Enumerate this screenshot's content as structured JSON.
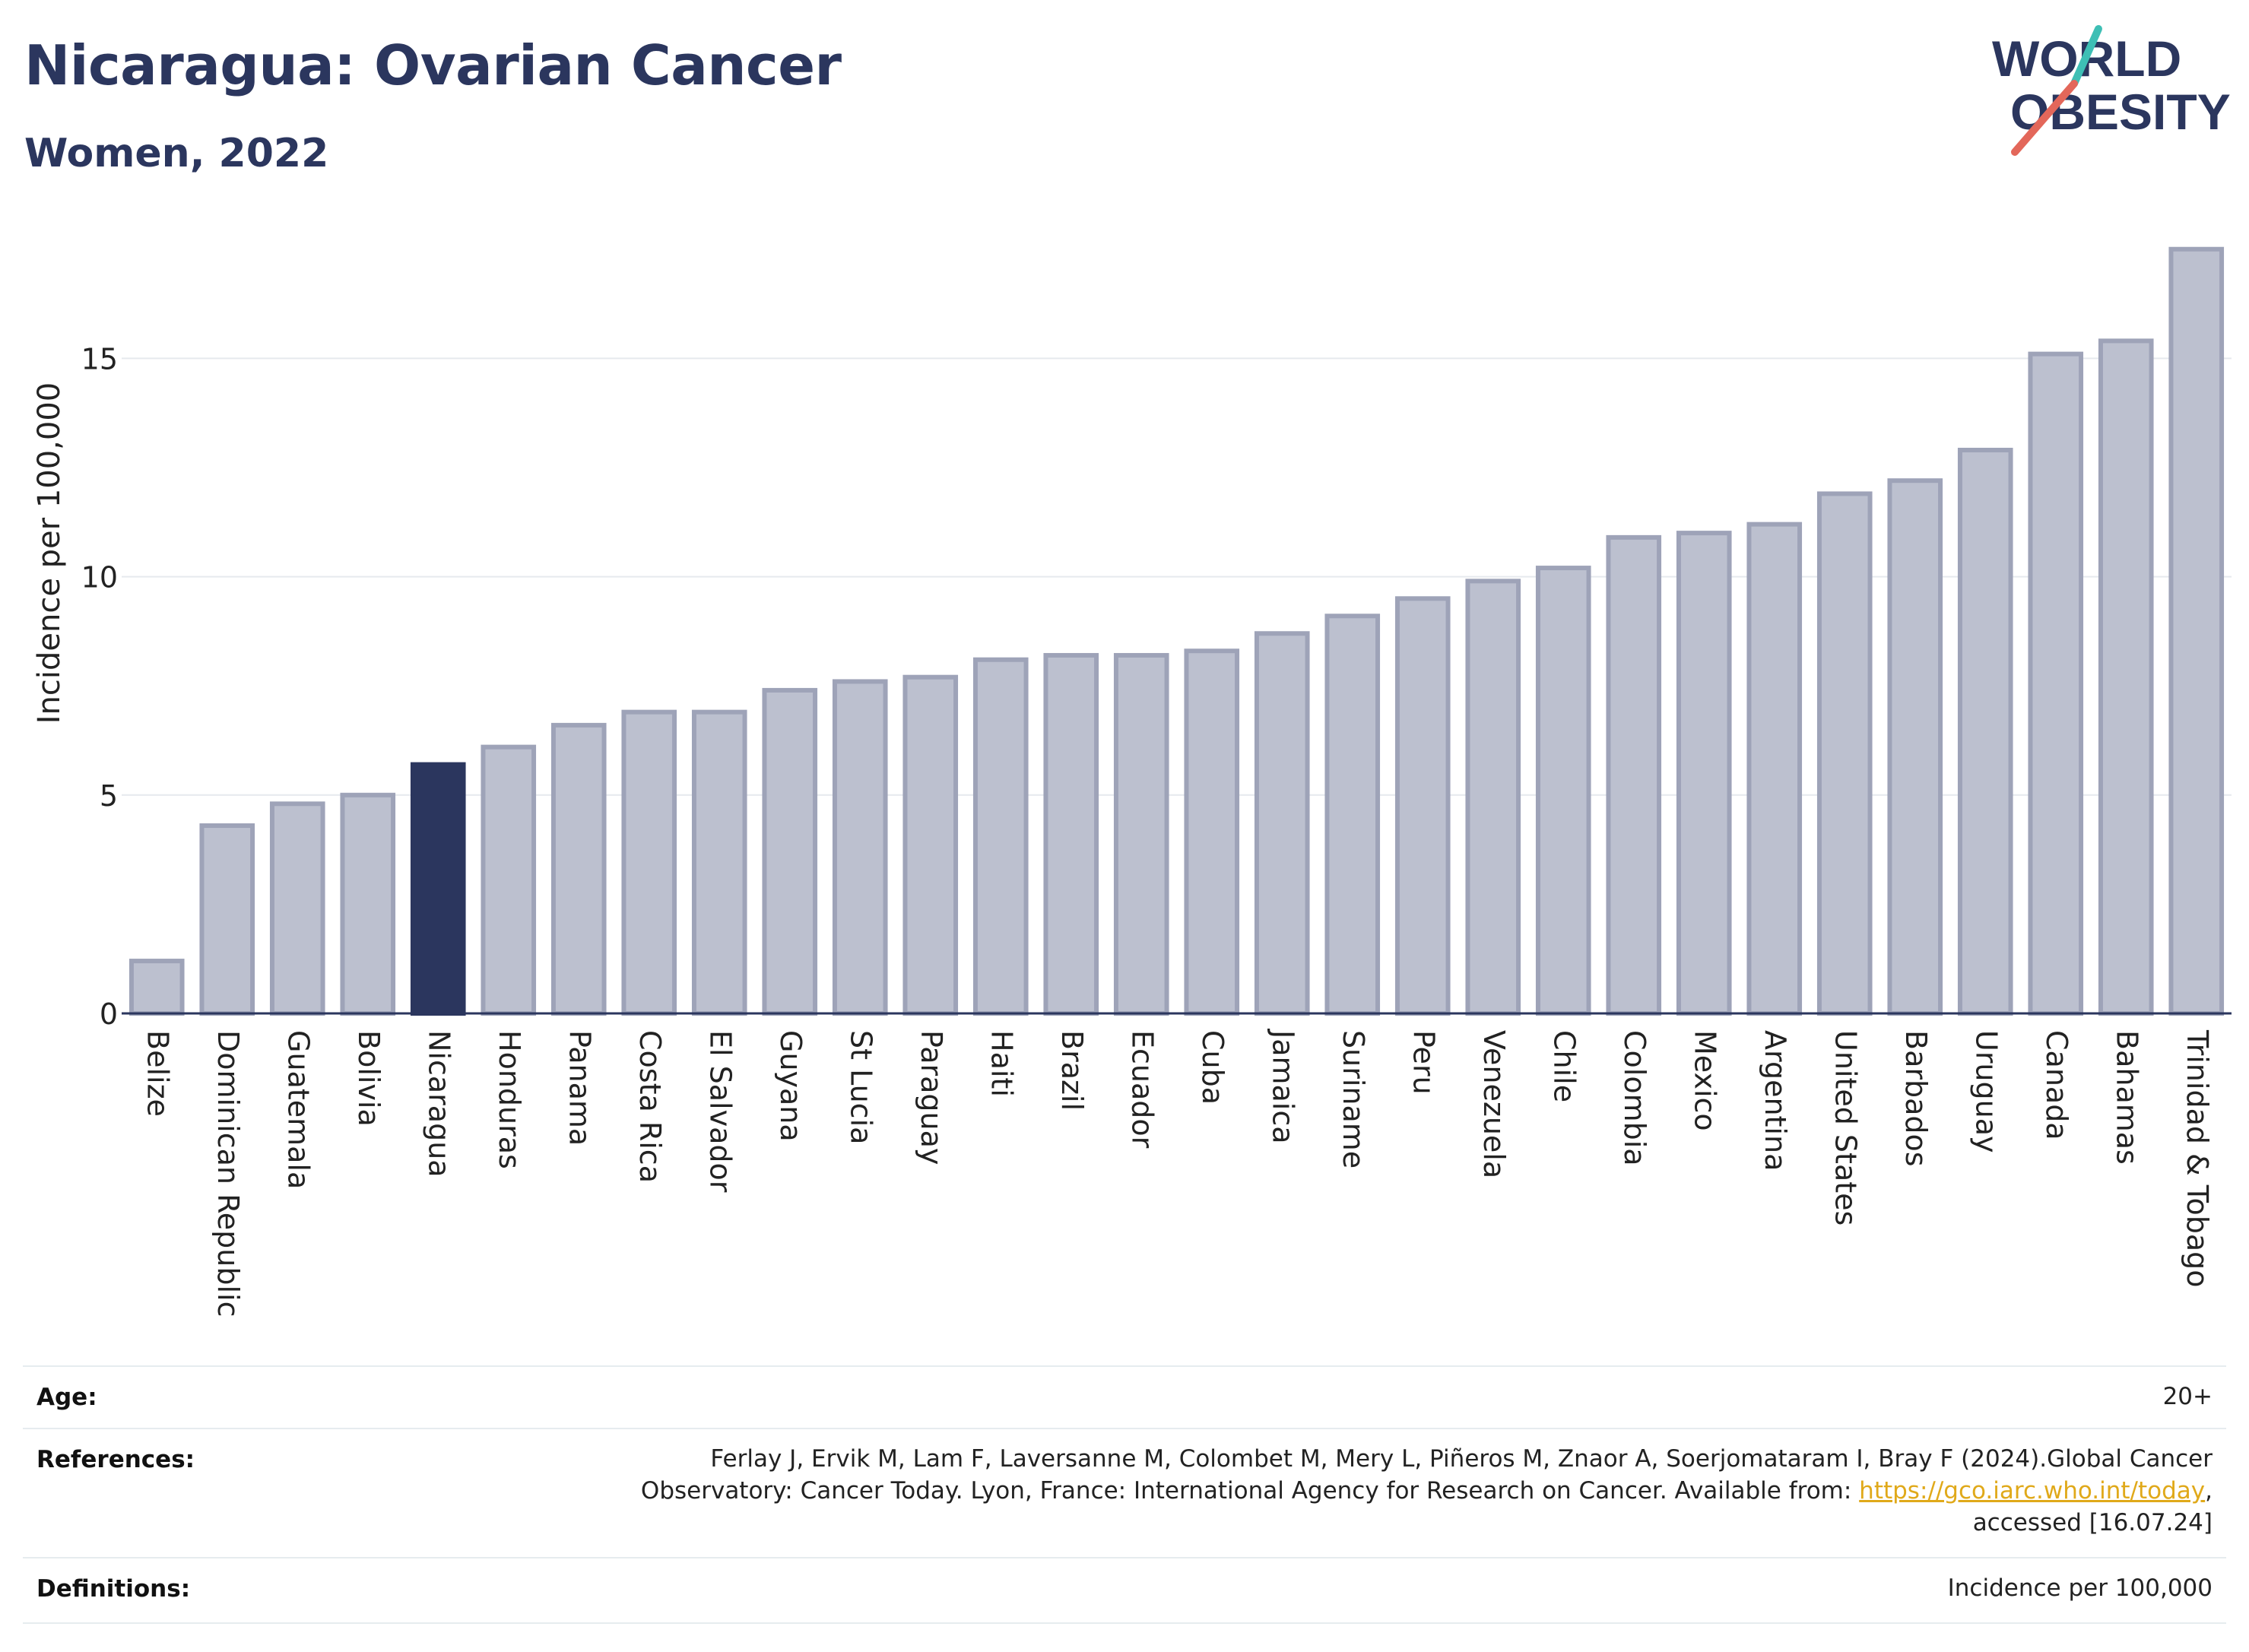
{
  "header": {
    "title": "Nicaragua: Ovarian Cancer",
    "subtitle": "Women, 2022",
    "logo_line1": "WORLD",
    "logo_line2": "OBESITY"
  },
  "colors": {
    "highlight": "#2b365e",
    "bar_fill": "#bcc0cf",
    "bar_stroke": "#9ea3b8",
    "grid": "#e6e9ee",
    "axis": "#2b365e",
    "logo_teal": "#3ebfb5",
    "logo_coral": "#e3675a",
    "link": "#e0a91a"
  },
  "chart_data": {
    "type": "bar",
    "ylabel": "Incidence per 100,000",
    "ylim": [
      0,
      17.6
    ],
    "yticks": [
      0,
      5,
      10,
      15
    ],
    "grid": true,
    "highlight": "Nicaragua",
    "categories": [
      "Belize",
      "Dominican Republic",
      "Guatemala",
      "Bolivia",
      "Nicaragua",
      "Honduras",
      "Panama",
      "Costa Rica",
      "El Salvador",
      "Guyana",
      "St Lucia",
      "Paraguay",
      "Haiti",
      "Brazil",
      "Ecuador",
      "Cuba",
      "Jamaica",
      "Suriname",
      "Peru",
      "Venezuela",
      "Chile",
      "Colombia",
      "Mexico",
      "Argentina",
      "United States",
      "Barbados",
      "Uruguay",
      "Canada",
      "Bahamas",
      "Trinidad & Tobago"
    ],
    "values": [
      1.2,
      4.3,
      4.8,
      5.0,
      5.7,
      6.1,
      6.6,
      6.9,
      6.9,
      7.4,
      7.6,
      7.7,
      8.1,
      8.2,
      8.2,
      8.3,
      8.7,
      9.1,
      9.5,
      9.9,
      10.2,
      10.9,
      11.0,
      11.2,
      11.9,
      12.2,
      12.9,
      15.1,
      15.4,
      17.5
    ]
  },
  "meta": {
    "age_label": "Age:",
    "age_value": "20+",
    "references_label": "References:",
    "references_line1": "Ferlay J, Ervik M, Lam F, Laversanne M, Colombet M, Mery L, Piñeros M, Znaor A, Soerjomataram I, Bray F (2024).Global Cancer",
    "references_line2_pre": "Observatory: Cancer Today. Lyon, France: International Agency for Research on Cancer. Available from: ",
    "references_link": "https://gco.iarc.who.int/today",
    "references_line2_post": ",",
    "references_line3": "accessed [16.07.24]",
    "definitions_label": "Definitions:",
    "definitions_value": "Incidence per 100,000"
  }
}
